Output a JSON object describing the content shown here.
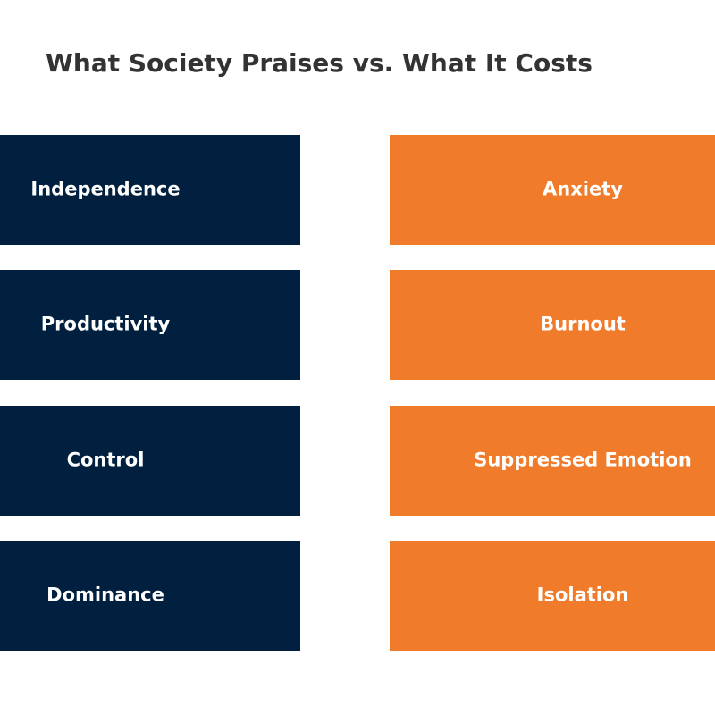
{
  "title": "What Society Praises vs. What It Costs",
  "praises": [
    "Independence",
    "Productivity",
    "Control",
    "Dominance"
  ],
  "costs": [
    "Anxiety",
    "Burnout",
    "Suppressed Emotion",
    "Isolation"
  ]
}
